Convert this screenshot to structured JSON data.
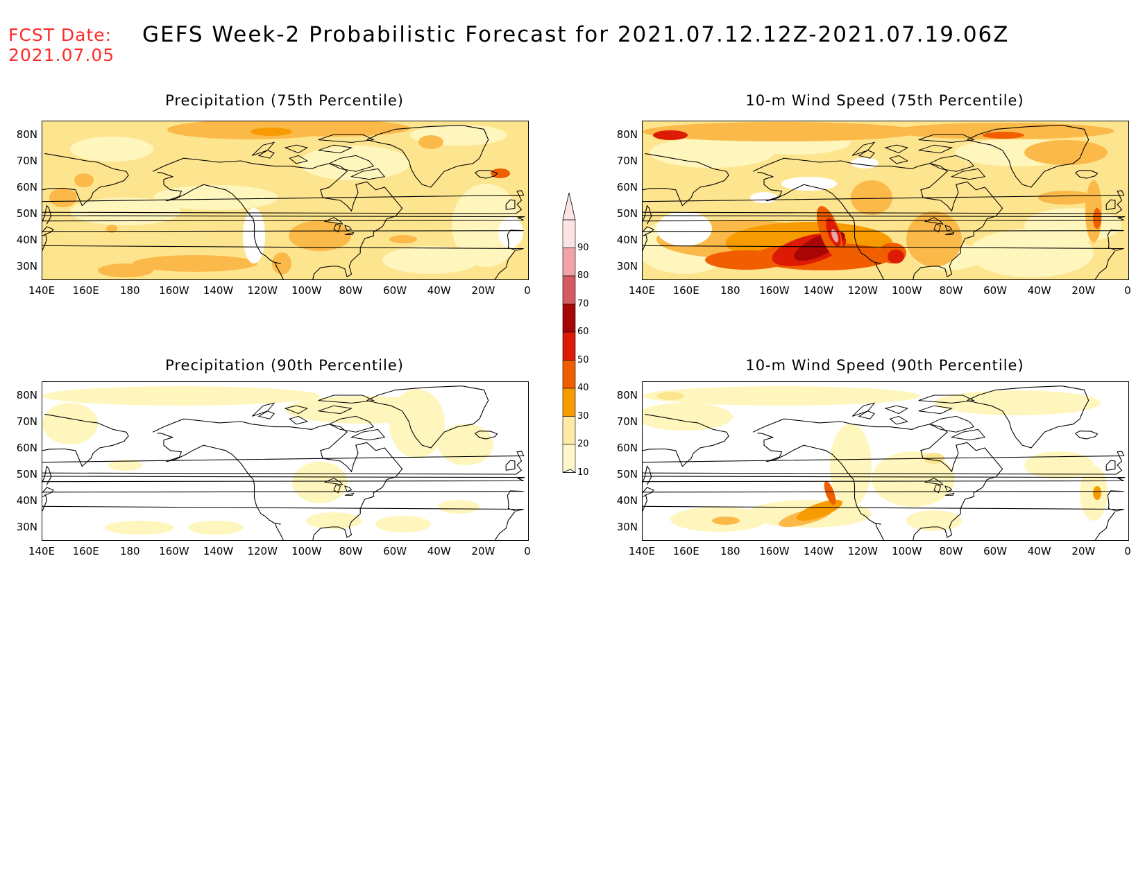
{
  "header": {
    "fcst_label": "FCST Date:",
    "fcst_date": "2021.07.05",
    "title": "GEFS Week-2 Probabilistic Forecast for 2021.07.12.12Z-2021.07.19.06Z"
  },
  "panels": [
    {
      "id": "precip75",
      "title": "Precipitation (75th Percentile)"
    },
    {
      "id": "wind75",
      "title": "10-m Wind Speed (75th Percentile)"
    },
    {
      "id": "precip90",
      "title": "Precipitation (90th Percentile)"
    },
    {
      "id": "wind90",
      "title": "10-m Wind Speed (90th Percentile)"
    }
  ],
  "lat_labels": [
    "80N",
    "70N",
    "60N",
    "50N",
    "40N",
    "30N"
  ],
  "lon_labels": [
    "140E",
    "160E",
    "180",
    "160W",
    "140W",
    "120W",
    "100W",
    "80W",
    "60W",
    "40W",
    "20W",
    "0"
  ],
  "colorbar": {
    "levels": [
      "90",
      "80",
      "70",
      "60",
      "50",
      "40",
      "30",
      "20",
      "10"
    ],
    "colors": [
      "#fde4e4",
      "#f2a3a6",
      "#d55a62",
      "#a80606",
      "#dd1a04",
      "#f05e00",
      "#f79b00",
      "#fee9a6",
      "#fff7cc"
    ]
  },
  "palette": {
    "white": "#ffffff",
    "pale": "#fff6bd",
    "light": "#fde58f",
    "orange1": "#fbb94a",
    "orange2": "#f79b00",
    "orange3": "#f05e00",
    "red1": "#dd1a04",
    "red2": "#a80606",
    "pink": "#f2a3a6"
  }
}
